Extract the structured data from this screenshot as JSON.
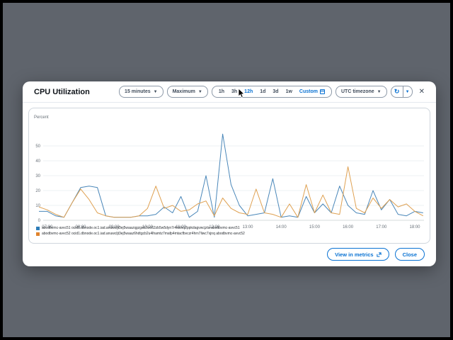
{
  "window": {
    "title": "CPU Utilization"
  },
  "header": {
    "period_dropdown": {
      "label": "15 minutes"
    },
    "statistic_dropdown": {
      "label": "Maximum"
    },
    "ranges": {
      "options": [
        "1h",
        "3h",
        "12h",
        "1d",
        "3d",
        "1w"
      ],
      "selected": "12h",
      "custom_label": "Custom"
    },
    "timezone_dropdown": {
      "label": "UTC timezone"
    },
    "refresh_icon": "refresh-icon",
    "close_icon": "close-icon"
  },
  "chart_data": {
    "type": "line",
    "title": "CPU Utilization",
    "ylabel": "Percent",
    "ylim": [
      0,
      60
    ],
    "yticks": [
      0,
      10,
      20,
      30,
      40,
      50
    ],
    "grid": true,
    "legend_position": "bottom-left",
    "x_tick_labels": [
      "07:00",
      "08:00",
      "09:00",
      "10:00",
      "11:00",
      "12:00",
      "13:00",
      "14:00",
      "15:00",
      "16:00",
      "17:00",
      "18:00"
    ],
    "x": [
      "06:45",
      "07:00",
      "07:15",
      "07:30",
      "07:45",
      "08:00",
      "08:15",
      "08:30",
      "08:45",
      "09:00",
      "09:15",
      "09:30",
      "09:45",
      "10:00",
      "10:15",
      "10:30",
      "10:45",
      "11:00",
      "11:15",
      "11:30",
      "11:45",
      "12:00",
      "12:15",
      "12:30",
      "12:45",
      "13:00",
      "13:15",
      "13:30",
      "13:45",
      "14:00",
      "14:15",
      "14:30",
      "14:45",
      "15:00",
      "15:15",
      "15:30",
      "15:45",
      "16:00",
      "16:15",
      "16:30",
      "16:45",
      "17:00",
      "17:15",
      "17:30",
      "17:45",
      "18:00",
      "18:15"
    ],
    "series": [
      {
        "name": "abodbvmc-avvc51 ocid1.dbnode.oc1.iad.anuwcljt3ej5waazqgzgxb2wc62zb5w5dyn7r4kklnq2ppkdagvwcjzta abodbvmc-avvc51",
        "color": "#4a87b9",
        "legend_color": "#2e7db8",
        "values": [
          6,
          6,
          3,
          2,
          12,
          22,
          23,
          22,
          3,
          2,
          2,
          2,
          3,
          3,
          4,
          9,
          5,
          16,
          2,
          6,
          30,
          2,
          58,
          24,
          10,
          3,
          4,
          5,
          28,
          2,
          3,
          2,
          16,
          5,
          11,
          5,
          23,
          10,
          5,
          4,
          20,
          7,
          14,
          4,
          3,
          6,
          5
        ]
      },
      {
        "name": "abodbvmc-avvc52 ocid1.dbnode.oc1.iad.anuwcljt3ej5waaz6hdtgcb2u4lhamtz7mafp4mtacfbvczr4hrn7liwc7xjnq abodbvmc-avvc52",
        "color": "#dfa152",
        "legend_color": "#e0832d",
        "values": [
          9,
          7,
          4,
          2,
          12,
          21,
          14,
          5,
          3,
          2,
          2,
          2,
          3,
          8,
          23,
          8,
          10,
          6,
          7,
          11,
          13,
          3,
          15,
          8,
          5,
          4,
          21,
          5,
          4,
          2,
          11,
          2,
          24,
          5,
          17,
          5,
          4,
          36,
          8,
          5,
          15,
          8,
          14,
          9,
          11,
          6,
          3
        ]
      }
    ]
  },
  "footer": {
    "view_in_metrics_label": "View in metrics",
    "close_label": "Close"
  },
  "colors": {
    "accent_blue": "#0972d3",
    "backdrop_gray": "#5f646c",
    "grid_line": "#edf0f3",
    "axis_text": "#687078"
  }
}
